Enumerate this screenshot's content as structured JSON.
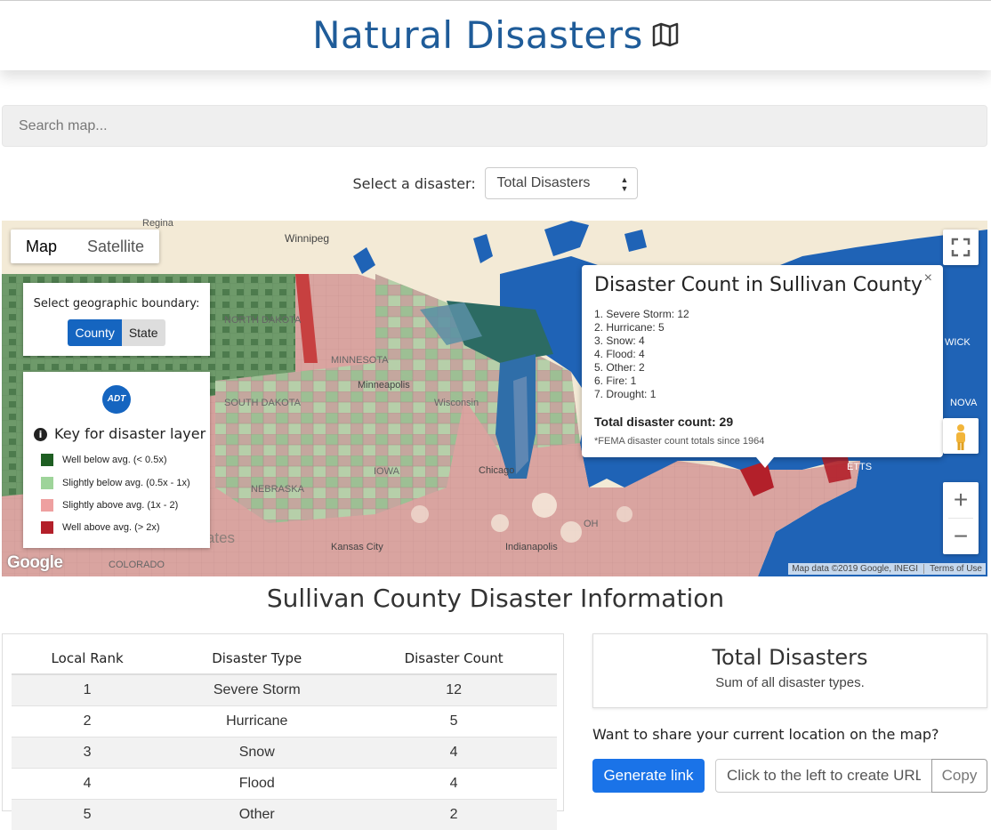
{
  "header": {
    "title": "Natural Disasters",
    "icon": "map-icon"
  },
  "search": {
    "placeholder": "Search map..."
  },
  "selector": {
    "label": "Select a disaster:",
    "value": "Total Disasters"
  },
  "map": {
    "type_map": "Map",
    "type_satellite": "Satellite",
    "labels": {
      "regina": "Regina",
      "winnipeg": "Winnipeg",
      "north_dakota": "NORTH DAKOTA",
      "minnesota": "MINNESOTA",
      "minneapolis": "Minneapolis",
      "south_dakota": "SOUTH DAKOTA",
      "wisconsin": "Wisconsin",
      "nebraska": "NEBRASKA",
      "iowa": "IOWA",
      "chicago": "Chicago",
      "ohio": "OH",
      "indianapolis": "Indianapolis",
      "united_states": "United States",
      "kansas_city": "Kansas City",
      "colorado": "COLORADO",
      "nova": "NOVA",
      "wick": "WICK",
      "etts": "ETTS"
    },
    "google": "Google",
    "attribution": "Map data ©2019 Google, INEGI",
    "terms": "Terms of Use",
    "boundary": {
      "label": "Select geographic boundary:",
      "county": "County",
      "state": "State"
    },
    "legend": {
      "logo": "ADT",
      "title": "Key for disaster layer",
      "items": [
        {
          "label": "Well below avg. (< 0.5x)",
          "color": "#1e5e22"
        },
        {
          "label": "Slightly below avg. (0.5x - 1x)",
          "color": "#9ed49a"
        },
        {
          "label": "Slightly above avg. (1x - 2)",
          "color": "#eea0a0"
        },
        {
          "label": "Well above avg. (> 2x)",
          "color": "#b3202a"
        }
      ]
    },
    "popup": {
      "title": "Disaster Count in Sullivan County",
      "items": [
        "1. Severe Storm: 12",
        "2. Hurricane: 5",
        "3. Snow: 4",
        "4. Flood: 4",
        "5. Other: 2",
        "6. Fire: 1",
        "7. Drought: 1"
      ],
      "total": "Total disaster count: 29",
      "note": "*FEMA disaster count totals since 1964",
      "close": "×"
    }
  },
  "info": {
    "title": "Sullivan County Disaster Information",
    "columns": [
      "Local Rank",
      "Disaster Type",
      "Disaster Count"
    ],
    "rows": [
      [
        "1",
        "Severe Storm",
        "12"
      ],
      [
        "2",
        "Hurricane",
        "5"
      ],
      [
        "3",
        "Snow",
        "4"
      ],
      [
        "4",
        "Flood",
        "4"
      ],
      [
        "5",
        "Other",
        "2"
      ]
    ]
  },
  "summary": {
    "title": "Total Disasters",
    "subtitle": "Sum of all disaster types."
  },
  "share": {
    "question": "Want to share your current location on the map?",
    "button": "Generate link",
    "placeholder": "Click to the left to create URL",
    "copy": "Copy"
  },
  "colors": {
    "accent": "#1a73e8",
    "title": "#1f5c99",
    "water": "#1565c0"
  }
}
